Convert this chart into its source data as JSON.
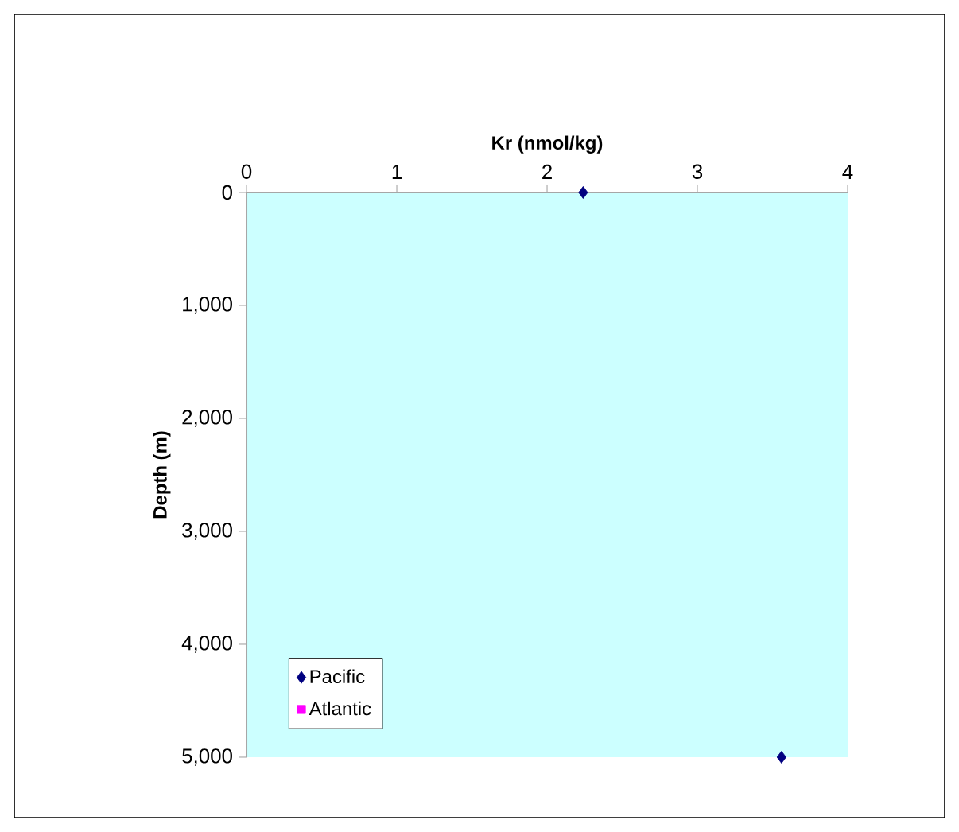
{
  "chart_data": {
    "type": "scatter",
    "xlabel": "Kr (nmol/kg)",
    "ylabel": "Depth (m)",
    "xlim": [
      0,
      4
    ],
    "xticks": [
      0,
      1,
      2,
      3,
      4
    ],
    "ylim": [
      5000,
      0
    ],
    "yticks": [
      0,
      {
        "value": 1000,
        "label": "1,000"
      },
      {
        "value": 2000,
        "label": "2,000"
      },
      {
        "value": 3000,
        "label": "3,000"
      },
      {
        "value": 4000,
        "label": "4,000"
      },
      {
        "value": 5000,
        "label": "5,000"
      }
    ],
    "legend": "bottom left",
    "grid": false,
    "series": [
      {
        "name": "Pacific",
        "color": "#000080",
        "marker": "diamond",
        "x": [
          2.24,
          3.56
        ],
        "values": [
          0,
          5000
        ]
      },
      {
        "name": "Atlantic",
        "color": "#ff00ff",
        "marker": "square"
      }
    ]
  }
}
